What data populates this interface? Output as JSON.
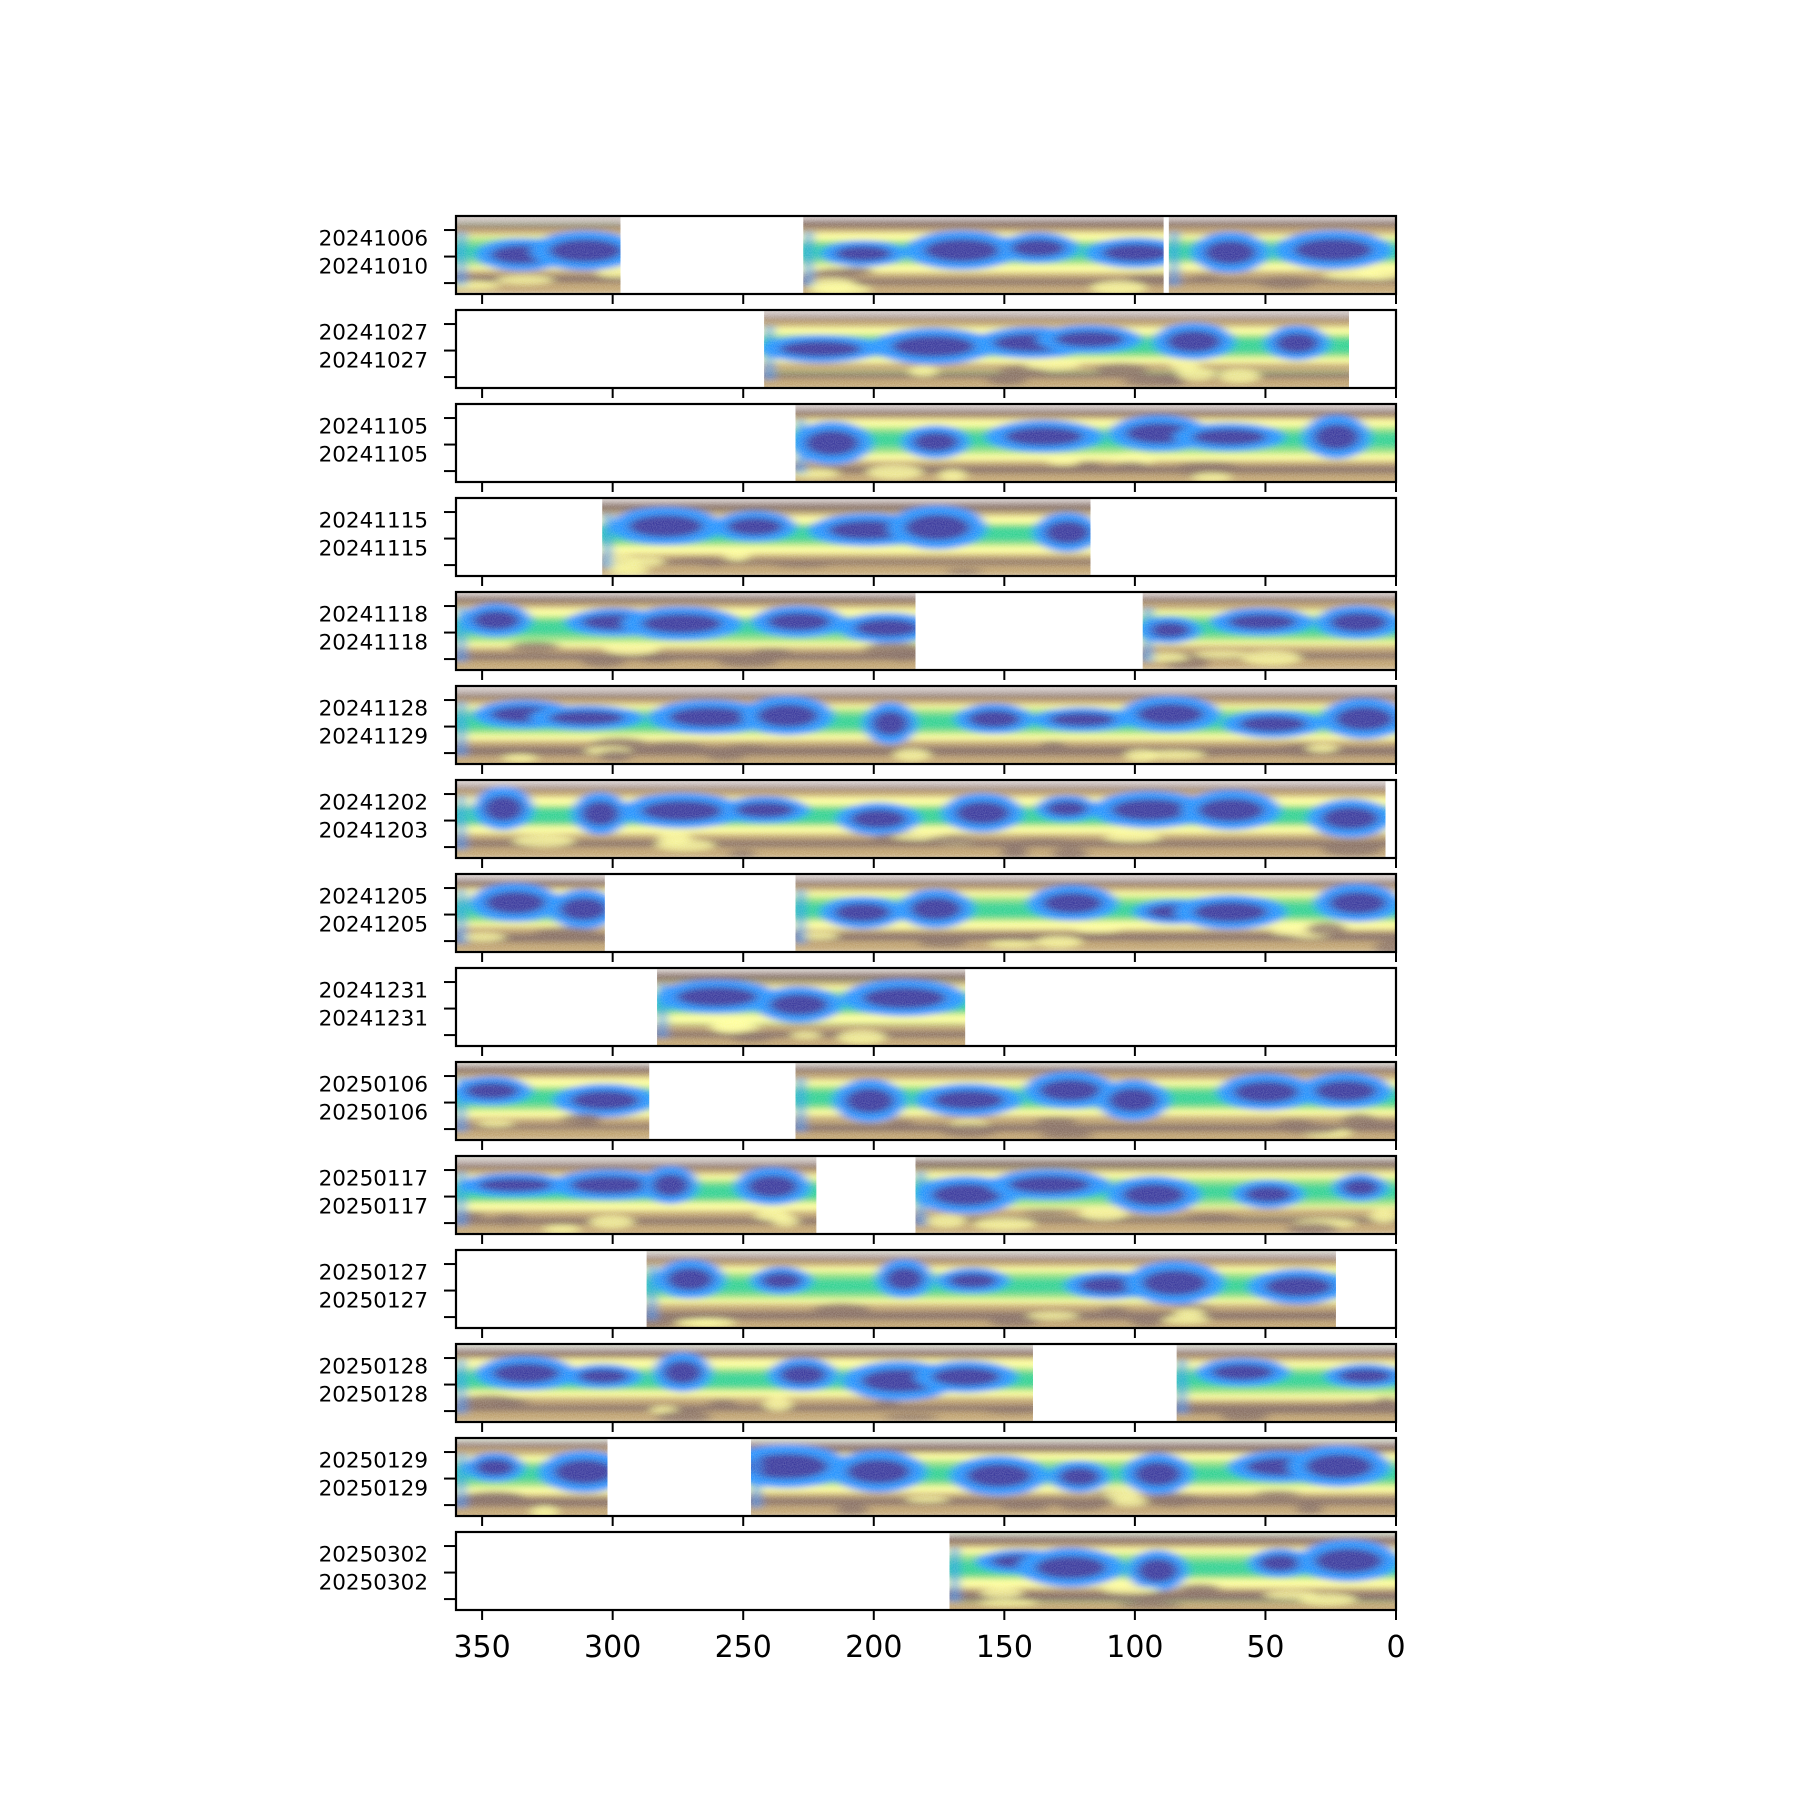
{
  "chart_data": {
    "type": "heatmap",
    "title": "",
    "xlabel": "",
    "ylabel": "",
    "xlim": [
      360,
      0
    ],
    "x_axis_reversed": true,
    "x_ticks": [
      350,
      300,
      250,
      200,
      150,
      100,
      50,
      0
    ],
    "colormap": "terrain",
    "colormap_stops": [
      "#333399",
      "#1f8fff",
      "#19cc8f",
      "#8fe07a",
      "#ffff99",
      "#bfa06b",
      "#80665c",
      "#c9bdba",
      "#ffffff"
    ],
    "panels": [
      {
        "labels": [
          "20241006",
          "20241010"
        ],
        "coverage": [
          [
            360,
            297
          ],
          [
            227,
            89
          ],
          [
            87,
            0
          ]
        ]
      },
      {
        "labels": [
          "20241027",
          "20241027"
        ],
        "coverage": [
          [
            242,
            18
          ]
        ]
      },
      {
        "labels": [
          "20241105",
          "20241105"
        ],
        "coverage": [
          [
            230,
            0
          ]
        ]
      },
      {
        "labels": [
          "20241115",
          "20241115"
        ],
        "coverage": [
          [
            304,
            117
          ]
        ]
      },
      {
        "labels": [
          "20241118",
          "20241118"
        ],
        "coverage": [
          [
            360,
            184
          ],
          [
            97,
            0
          ]
        ]
      },
      {
        "labels": [
          "20241128",
          "20241129"
        ],
        "coverage": [
          [
            360,
            0
          ]
        ]
      },
      {
        "labels": [
          "20241202",
          "20241203"
        ],
        "coverage": [
          [
            360,
            4
          ]
        ]
      },
      {
        "labels": [
          "20241205",
          "20241205"
        ],
        "coverage": [
          [
            360,
            303
          ],
          [
            230,
            0
          ]
        ]
      },
      {
        "labels": [
          "20241231",
          "20241231"
        ],
        "coverage": [
          [
            283,
            165
          ]
        ]
      },
      {
        "labels": [
          "20250106",
          "20250106"
        ],
        "coverage": [
          [
            360,
            286
          ],
          [
            230,
            0
          ]
        ]
      },
      {
        "labels": [
          "20250117",
          "20250117"
        ],
        "coverage": [
          [
            360,
            222
          ],
          [
            184,
            0
          ]
        ]
      },
      {
        "labels": [
          "20250127",
          "20250127"
        ],
        "coverage": [
          [
            287,
            23
          ]
        ]
      },
      {
        "labels": [
          "20250128",
          "20250128"
        ],
        "coverage": [
          [
            360,
            139
          ],
          [
            84,
            0
          ]
        ]
      },
      {
        "labels": [
          "20250129",
          "20250129"
        ],
        "coverage": [
          [
            360,
            302
          ],
          [
            247,
            0
          ]
        ]
      },
      {
        "labels": [
          "20250302",
          "20250302"
        ],
        "coverage": [
          [
            171,
            0
          ]
        ]
      }
    ]
  }
}
